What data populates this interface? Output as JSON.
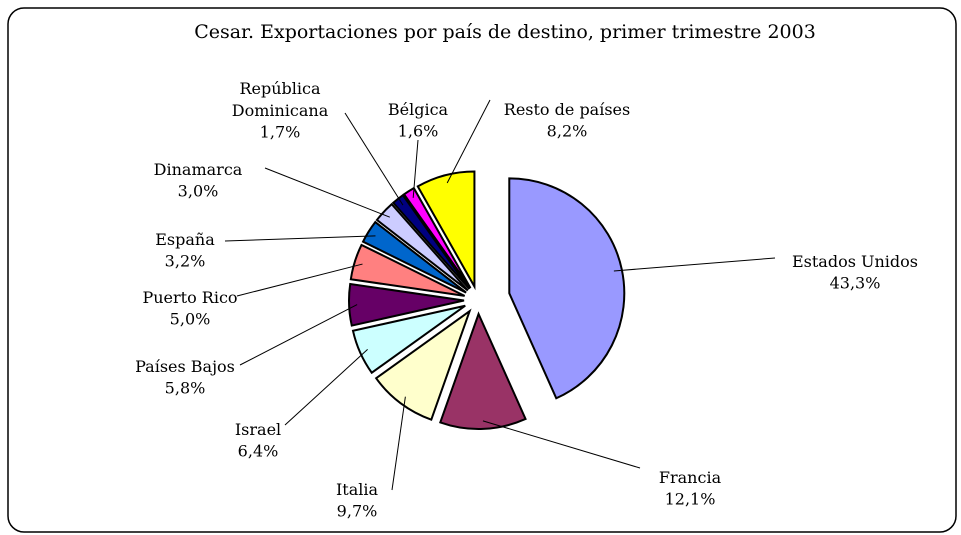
{
  "chart_data": {
    "type": "pie",
    "title": "Cesar. Exportaciones por país de destino, primer trimestre 2003",
    "categories": [
      "Estados Unidos",
      "Francia",
      "Italia",
      "Israel",
      "Países Bajos",
      "Puerto Rico",
      "España",
      "Dinamarca",
      "República Dominicana",
      "Bélgica",
      "Resto de países"
    ],
    "values": [
      43.3,
      12.1,
      9.7,
      6.4,
      5.8,
      5.0,
      3.2,
      3.0,
      1.7,
      1.6,
      8.2
    ],
    "value_labels": [
      "43,3%",
      "12,1%",
      "9,7%",
      "6,4%",
      "5,8%",
      "5,0%",
      "3,2%",
      "3,0%",
      "1,7%",
      "1,6%",
      "8,2%"
    ],
    "colors": [
      "#9999ff",
      "#993366",
      "#ffffcc",
      "#ccffff",
      "#660066",
      "#ff8080",
      "#0066cc",
      "#ccccff",
      "#000080",
      "#ff00ff",
      "#ffff00"
    ]
  }
}
